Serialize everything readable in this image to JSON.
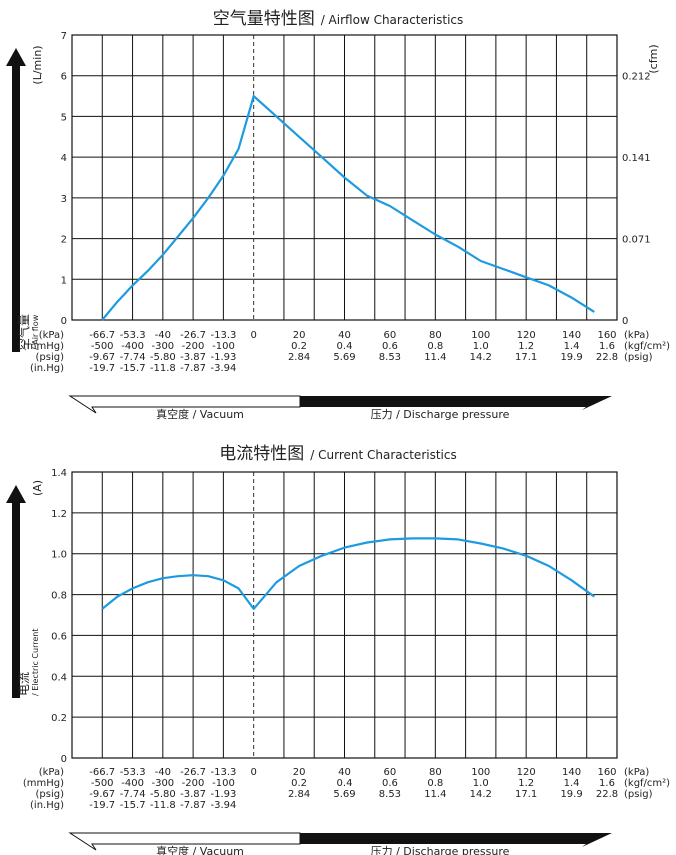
{
  "chart_data": [
    {
      "type": "line",
      "title": "空气量特性图",
      "title_en": "/ Airflow Characteristics",
      "ylabel_zh": "空气量",
      "ylabel_en": "/ Air flow",
      "ylabel_unit": "(L/min)",
      "y2label_unit": "(cfm)",
      "ylim": [
        0,
        7
      ],
      "yticks": [
        "0",
        "1",
        "2",
        "3",
        "4",
        "5",
        "6",
        "7"
      ],
      "y2ticks": [
        {
          "value": 0,
          "label": "0"
        },
        {
          "value": 2,
          "label": "0.071"
        },
        {
          "value": 4,
          "label": "0.141"
        },
        {
          "value": 6,
          "label": "0.212"
        }
      ],
      "xlim": [
        -80,
        160
      ],
      "grid": true,
      "series": [
        {
          "x": [
            -66.7,
            -60,
            -53.3,
            -46.7,
            -40,
            -33.3,
            -26.7,
            -20,
            -13.3,
            -6.7,
            0,
            10,
            20,
            30,
            40,
            50,
            60,
            70,
            80,
            90,
            100,
            110,
            120,
            130,
            140,
            150
          ],
          "y": [
            0,
            0.45,
            0.85,
            1.2,
            1.6,
            2.05,
            2.5,
            3.0,
            3.55,
            4.2,
            5.5,
            5.0,
            4.5,
            4.0,
            3.5,
            3.05,
            2.8,
            2.45,
            2.1,
            1.8,
            1.45,
            1.25,
            1.05,
            0.85,
            0.55,
            0.2
          ]
        }
      ]
    },
    {
      "type": "line",
      "title": "电流特性图",
      "title_en": "/ Current Characteristics",
      "ylabel_zh": "电流",
      "ylabel_en": "/ Electric Current",
      "ylabel_unit": "(A)",
      "ylim": [
        0,
        1.4
      ],
      "yticks": [
        "0",
        "0.2",
        "0.4",
        "0.6",
        "0.8",
        "1.0",
        "1.2",
        "1.4"
      ],
      "xlim": [
        -80,
        160
      ],
      "grid": true,
      "series": [
        {
          "x": [
            -66.7,
            -60,
            -53.3,
            -46.7,
            -40,
            -33.3,
            -26.7,
            -20,
            -13.3,
            -6.7,
            0,
            10,
            20,
            30,
            40,
            50,
            60,
            70,
            80,
            90,
            100,
            110,
            120,
            130,
            140,
            150
          ],
          "y": [
            0.73,
            0.79,
            0.83,
            0.86,
            0.88,
            0.89,
            0.895,
            0.89,
            0.87,
            0.83,
            0.73,
            0.86,
            0.94,
            0.99,
            1.03,
            1.055,
            1.07,
            1.075,
            1.075,
            1.07,
            1.05,
            1.025,
            0.99,
            0.94,
            0.87,
            0.79
          ]
        }
      ]
    }
  ],
  "xaxis": {
    "unit_labels": [
      "(kPa)",
      "(mmHg)",
      "(psig)",
      "(in.Hg)"
    ],
    "vacuum_cols": [
      {
        "kpa": "-66.7",
        "mmhg": "-500",
        "psig": "-9.67",
        "inhg": "-19.7"
      },
      {
        "kpa": "-53.3",
        "mmhg": "-400",
        "psig": "-7.74",
        "inhg": "-15.7"
      },
      {
        "kpa": "-40",
        "mmhg": "-300",
        "psig": "-5.80",
        "inhg": "-11.8"
      },
      {
        "kpa": "-26.7",
        "mmhg": "-200",
        "psig": "-3.87",
        "inhg": "-7.87"
      },
      {
        "kpa": "-13.3",
        "mmhg": "-100",
        "psig": "-1.93",
        "inhg": "-3.94"
      }
    ],
    "zero_label": "0",
    "pressure_cols": [
      {
        "kpa": "20",
        "kgf": "0.2",
        "psig": "2.84"
      },
      {
        "kpa": "40",
        "kgf": "0.4",
        "psig": "5.69"
      },
      {
        "kpa": "60",
        "kgf": "0.6",
        "psig": "8.53"
      },
      {
        "kpa": "80",
        "kgf": "0.8",
        "psig": "11.4"
      },
      {
        "kpa": "100",
        "kgf": "1.0",
        "psig": "14.2"
      },
      {
        "kpa": "120",
        "kgf": "1.2",
        "psig": "17.1"
      },
      {
        "kpa": "140",
        "kgf": "1.4",
        "psig": "19.9"
      },
      {
        "kpa": "160",
        "kgf": "1.6",
        "psig": "22.8"
      }
    ],
    "right_units": [
      "(kPa)",
      "(kgf/cm²)",
      "(psig)"
    ],
    "vacuum_label": "真空度 / Vacuum",
    "pressure_label": "压力 / Discharge pressure"
  },
  "colors": {
    "curve": "#1e9be0",
    "grid": "#111111",
    "axis": "#111111"
  }
}
